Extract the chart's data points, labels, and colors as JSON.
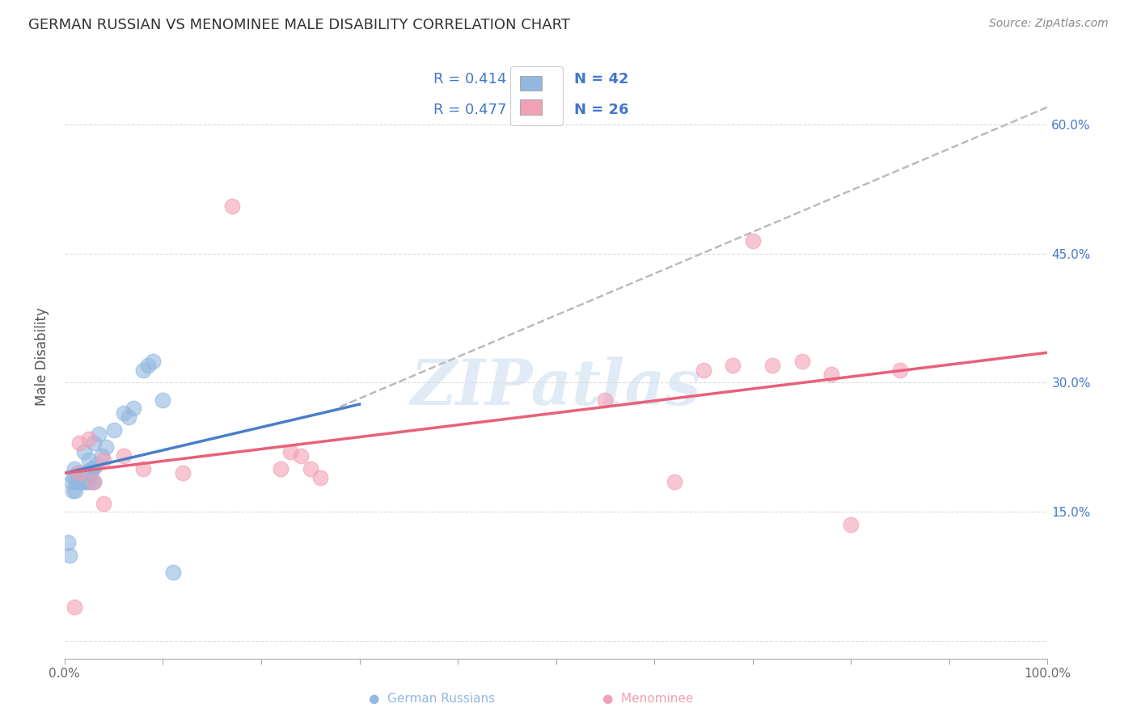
{
  "title": "GERMAN RUSSIAN VS MENOMINEE MALE DISABILITY CORRELATION CHART",
  "source": "Source: ZipAtlas.com",
  "ylabel": "Male Disability",
  "xlim": [
    0.0,
    1.0
  ],
  "ylim": [
    -0.02,
    0.68
  ],
  "xticks": [
    0.0,
    0.1,
    0.2,
    0.3,
    0.4,
    0.5,
    0.6,
    0.7,
    0.8,
    0.9,
    1.0
  ],
  "xticklabels": [
    "0.0%",
    "",
    "",
    "",
    "",
    "",
    "",
    "",
    "",
    "",
    "100.0%"
  ],
  "yticks": [
    0.0,
    0.15,
    0.3,
    0.45,
    0.6
  ],
  "yticklabels": [
    "",
    "15.0%",
    "30.0%",
    "45.0%",
    "60.0%"
  ],
  "blue_color": "#92B8E0",
  "pink_color": "#F2A0B5",
  "blue_line_color": "#4A7EC7",
  "pink_line_color": "#E8607A",
  "dashed_line_color": "#BBBBBB",
  "watermark_text": "ZIPatlas",
  "german_russian_x": [
    0.003,
    0.005,
    0.007,
    0.008,
    0.009,
    0.01,
    0.011,
    0.012,
    0.013,
    0.014,
    0.015,
    0.016,
    0.017,
    0.018,
    0.019,
    0.02,
    0.021,
    0.022,
    0.023,
    0.024,
    0.025,
    0.026,
    0.027,
    0.028,
    0.029,
    0.03,
    0.032,
    0.035,
    0.038,
    0.042,
    0.05,
    0.06,
    0.065,
    0.07,
    0.08,
    0.085,
    0.09,
    0.1,
    0.11,
    0.02,
    0.025,
    0.03
  ],
  "german_russian_y": [
    0.115,
    0.1,
    0.185,
    0.175,
    0.19,
    0.2,
    0.175,
    0.185,
    0.195,
    0.185,
    0.19,
    0.185,
    0.185,
    0.185,
    0.195,
    0.19,
    0.195,
    0.185,
    0.185,
    0.195,
    0.19,
    0.195,
    0.2,
    0.185,
    0.2,
    0.185,
    0.205,
    0.24,
    0.215,
    0.225,
    0.245,
    0.265,
    0.26,
    0.27,
    0.315,
    0.32,
    0.325,
    0.28,
    0.08,
    0.22,
    0.21,
    0.23
  ],
  "menominee_x": [
    0.01,
    0.015,
    0.025,
    0.03,
    0.04,
    0.06,
    0.08,
    0.12,
    0.17,
    0.22,
    0.23,
    0.24,
    0.25,
    0.26,
    0.55,
    0.62,
    0.65,
    0.68,
    0.7,
    0.72,
    0.75,
    0.78,
    0.8,
    0.85,
    0.04,
    0.015
  ],
  "menominee_y": [
    0.04,
    0.195,
    0.235,
    0.185,
    0.21,
    0.215,
    0.2,
    0.195,
    0.505,
    0.2,
    0.22,
    0.215,
    0.2,
    0.19,
    0.28,
    0.185,
    0.315,
    0.32,
    0.465,
    0.32,
    0.325,
    0.31,
    0.135,
    0.315,
    0.16,
    0.23
  ],
  "blue_line_x_start": 0.0,
  "blue_line_x_end": 0.3,
  "blue_line_y_start": 0.195,
  "blue_line_y_end": 0.275,
  "pink_line_x_start": 0.0,
  "pink_line_x_end": 1.0,
  "pink_line_y_start": 0.195,
  "pink_line_y_end": 0.335,
  "dash_line_x_start": 0.28,
  "dash_line_x_end": 1.0,
  "dash_line_y_start": 0.272,
  "dash_line_y_end": 0.62
}
